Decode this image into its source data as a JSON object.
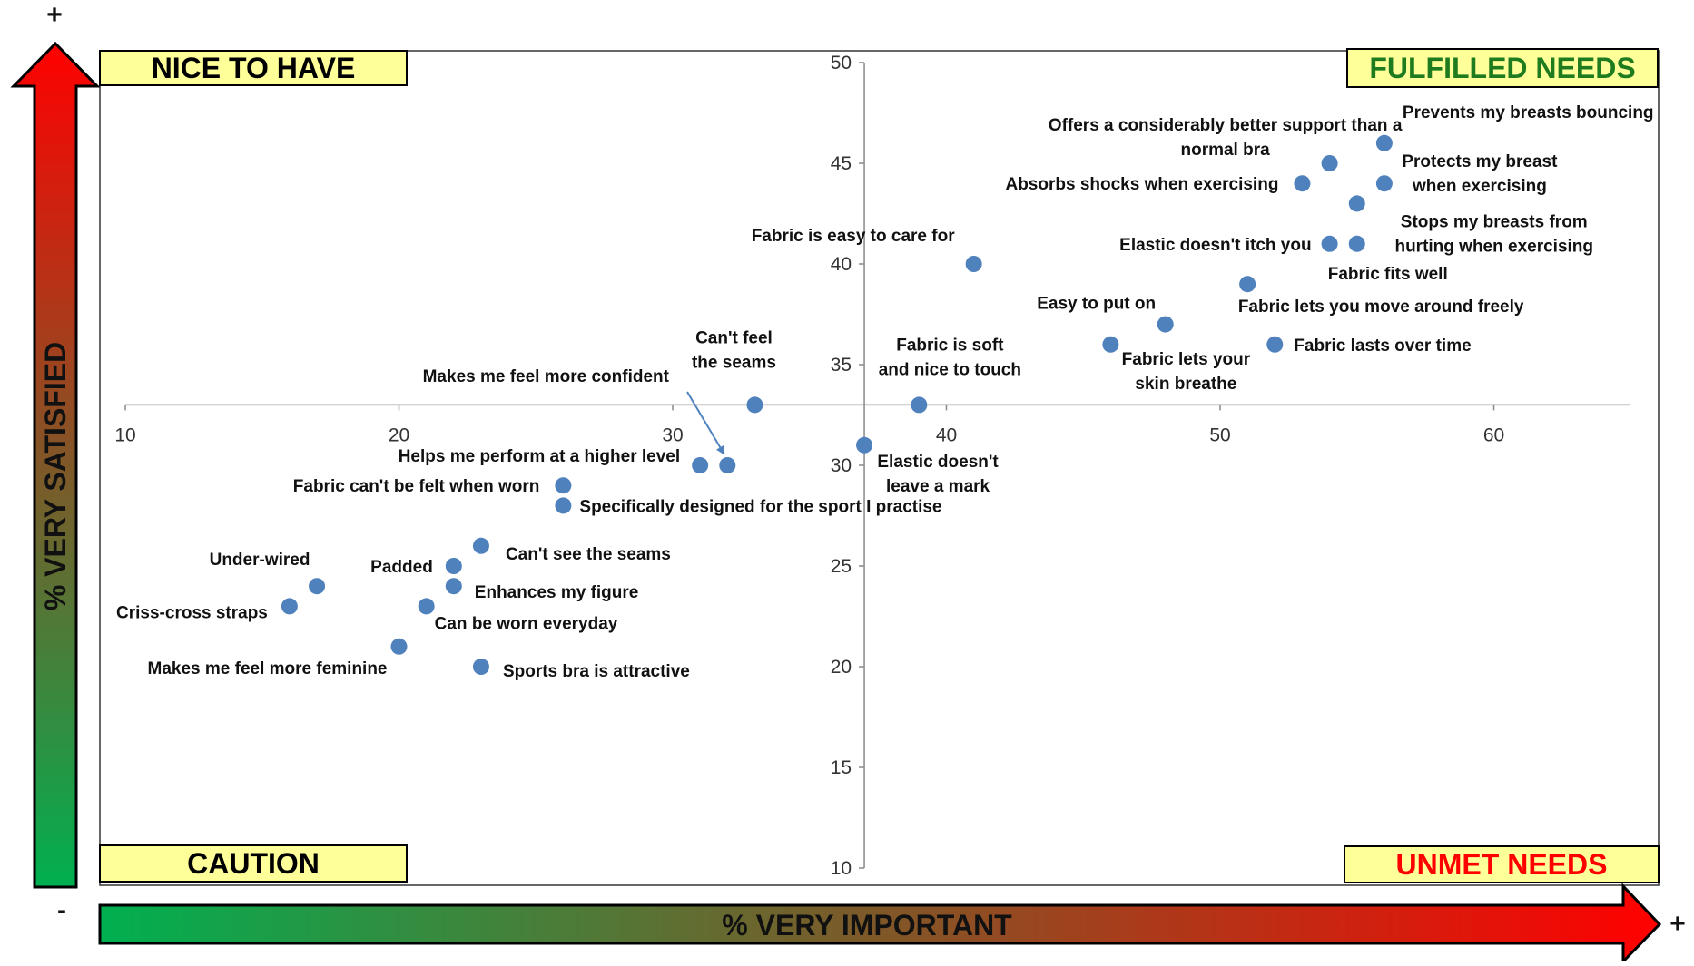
{
  "chart_data": {
    "type": "scatter",
    "title": "",
    "xlabel": "% VERY IMPORTANT",
    "ylabel": "% VERY SATISFIED",
    "xlim": [
      10,
      65
    ],
    "ylim": [
      10,
      50
    ],
    "x_ticks": [
      "10",
      "20",
      "30",
      "40",
      "50",
      "60"
    ],
    "y_ticks": [
      "10",
      "15",
      "20",
      "25",
      "30",
      "35",
      "40",
      "45",
      "50"
    ],
    "axis_cross": {
      "x": 37,
      "y": 33
    },
    "grid": false,
    "marker_color": "#4F81BD",
    "points": [
      {
        "label": "Prevents my breasts bouncing",
        "x": 56,
        "y": 46
      },
      {
        "label": "Offers a considerably better support than a normal bra",
        "x": 54,
        "y": 45
      },
      {
        "label": "Absorbs shocks when exercising",
        "x": 53,
        "y": 44
      },
      {
        "label": "Protects my breast when exercising",
        "x": 56,
        "y": 44
      },
      {
        "label": "Stops my breasts from hurting when exercising",
        "x": 55,
        "y": 43
      },
      {
        "label": "Elastic doesn't itch you",
        "x": 54,
        "y": 41
      },
      {
        "label": "Fabric fits well",
        "x": 55,
        "y": 41
      },
      {
        "label": "Fabric is easy to care for",
        "x": 41,
        "y": 40
      },
      {
        "label": "Fabric lets you move around freely",
        "x": 51,
        "y": 39
      },
      {
        "label": "Easy to put on",
        "x": 48,
        "y": 37
      },
      {
        "label": "Fabric lets your skin breathe",
        "x": 46,
        "y": 36
      },
      {
        "label": "Fabric lasts over time",
        "x": 52,
        "y": 36
      },
      {
        "label": "Can't feel the seams",
        "x": 33,
        "y": 33
      },
      {
        "label": "Fabric is soft and nice to touch",
        "x": 39,
        "y": 33
      },
      {
        "label": "Elastic doesn't leave a mark",
        "x": 37,
        "y": 31
      },
      {
        "label": "Makes me feel more confident",
        "x": 32,
        "y": 30
      },
      {
        "label": "Helps me perform at a higher level",
        "x": 31,
        "y": 30
      },
      {
        "label": "Fabric can't be felt when worn",
        "x": 26,
        "y": 29
      },
      {
        "label": "Specifically designed for the sport I practise",
        "x": 26,
        "y": 28
      },
      {
        "label": "Can't see the seams",
        "x": 23,
        "y": 26
      },
      {
        "label": "Padded",
        "x": 22,
        "y": 25
      },
      {
        "label": "Enhances my figure",
        "x": 22,
        "y": 24
      },
      {
        "label": "Under-wired",
        "x": 17,
        "y": 24
      },
      {
        "label": "Criss-cross straps",
        "x": 16,
        "y": 23
      },
      {
        "label": "Can be worn everyday",
        "x": 21,
        "y": 23
      },
      {
        "label": "Makes me feel more feminine",
        "x": 20,
        "y": 21
      },
      {
        "label": "Sports bra is attractive",
        "x": 23,
        "y": 20
      }
    ],
    "quadrants": {
      "top_left": "NICE TO HAVE",
      "top_right": "FULFILLED NEEDS",
      "bottom_left": "CAUTION",
      "bottom_right": "UNMET NEEDS"
    },
    "quadrant_colors": {
      "box_fill": "#FFFF99",
      "fulfilled_text": "#1E7B1E",
      "unmet_text": "#FF0000",
      "default_text": "#000000"
    },
    "arrow_colors": {
      "low": "#00B050",
      "high": "#FF0000"
    },
    "signs": {
      "plus": "+",
      "minus": "-"
    }
  }
}
